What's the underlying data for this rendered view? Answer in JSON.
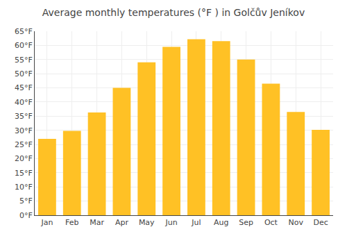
{
  "chart_data": {
    "type": "bar",
    "title": "Average monthly temperatures (°F ) in Golčův Jeníkov",
    "categories": [
      "Jan",
      "Feb",
      "Mar",
      "Apr",
      "May",
      "Jun",
      "Jul",
      "Aug",
      "Sep",
      "Oct",
      "Nov",
      "Dec"
    ],
    "values": [
      27.0,
      29.8,
      36.3,
      45.0,
      54.0,
      59.5,
      62.2,
      61.5,
      55.0,
      46.5,
      36.5,
      30.2
    ],
    "color": "#FFC125",
    "ylim": [
      0,
      65
    ],
    "yticks": [
      {
        "value": 0,
        "label": "0°F"
      },
      {
        "value": 5,
        "label": "5°F"
      },
      {
        "value": 10,
        "label": "10°F"
      },
      {
        "value": 15,
        "label": "15°F"
      },
      {
        "value": 20,
        "label": "20°F"
      },
      {
        "value": 25,
        "label": "25°F"
      },
      {
        "value": 30,
        "label": "30°F"
      },
      {
        "value": 35,
        "label": "35°F"
      },
      {
        "value": 40,
        "label": "40°F"
      },
      {
        "value": 45,
        "label": "45°F"
      },
      {
        "value": 50,
        "label": "50°F"
      },
      {
        "value": 55,
        "label": "55°F"
      },
      {
        "value": 60,
        "label": "60°F"
      },
      {
        "value": 65,
        "label": "65°F"
      }
    ],
    "grid": true
  }
}
